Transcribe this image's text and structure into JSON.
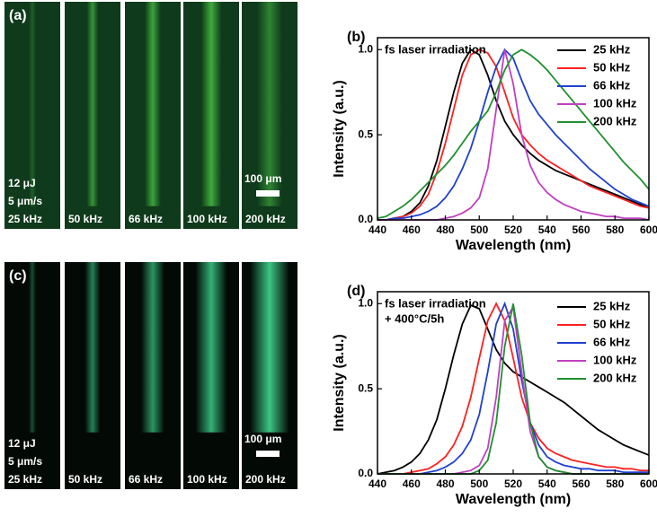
{
  "panels": [
    {
      "label": "(a)",
      "energy": "12 μJ",
      "speed": "5 μm/s",
      "frequencies": [
        "25 kHz",
        "50 kHz",
        "66 kHz",
        "100 kHz",
        "200 kHz"
      ],
      "scale": "100 μm"
    },
    {
      "label": "(c)",
      "energy": "12 μJ",
      "speed": "5 μm/s",
      "frequencies": [
        "25 kHz",
        "50 kHz",
        "66 kHz",
        "100 kHz",
        "200 kHz"
      ],
      "scale": "100 μm"
    }
  ],
  "chart_data": [
    {
      "type": "line",
      "label": "(b)",
      "annotation": [
        "fs laser irradiation"
      ],
      "x_label": "Wavelength (nm)",
      "y_label": "Intensity (a.u.)",
      "xlim": [
        440,
        600
      ],
      "ylim": [
        0,
        1.07
      ],
      "xticks": [
        440,
        460,
        480,
        500,
        520,
        540,
        560,
        580,
        600
      ],
      "yticks": [
        {
          "value": 0,
          "label": "0.0"
        },
        {
          "value": 0.5,
          "label": "0.5"
        },
        {
          "value": 1,
          "label": "1.0"
        }
      ],
      "legend": "upper right",
      "x": [
        440,
        445,
        450,
        455,
        460,
        465,
        470,
        475,
        480,
        485,
        490,
        495,
        500,
        505,
        510,
        515,
        520,
        525,
        530,
        535,
        540,
        545,
        550,
        555,
        560,
        565,
        570,
        575,
        580,
        585,
        590,
        595,
        600
      ],
      "series": [
        {
          "name": "25 kHz",
          "color": "#000000",
          "values": [
            0,
            0,
            0.01,
            0.02,
            0.05,
            0.1,
            0.2,
            0.35,
            0.55,
            0.75,
            0.92,
            1.0,
            0.97,
            0.85,
            0.7,
            0.58,
            0.5,
            0.44,
            0.39,
            0.35,
            0.32,
            0.29,
            0.27,
            0.25,
            0.23,
            0.21,
            0.19,
            0.17,
            0.15,
            0.13,
            0.11,
            0.09,
            0.07
          ]
        },
        {
          "name": "50 kHz",
          "color": "#ff2020",
          "values": [
            0,
            0,
            0.01,
            0.02,
            0.04,
            0.08,
            0.15,
            0.28,
            0.45,
            0.65,
            0.85,
            0.97,
            1.0,
            0.98,
            0.9,
            0.75,
            0.6,
            0.5,
            0.44,
            0.39,
            0.35,
            0.32,
            0.29,
            0.26,
            0.23,
            0.2,
            0.18,
            0.16,
            0.14,
            0.12,
            0.1,
            0.08,
            0.07
          ]
        },
        {
          "name": "66 kHz",
          "color": "#2040d0",
          "values": [
            0,
            0,
            0.01,
            0.01,
            0.02,
            0.03,
            0.05,
            0.08,
            0.13,
            0.2,
            0.3,
            0.42,
            0.58,
            0.75,
            0.9,
            1.0,
            0.95,
            0.82,
            0.7,
            0.62,
            0.56,
            0.5,
            0.45,
            0.4,
            0.35,
            0.3,
            0.26,
            0.22,
            0.18,
            0.15,
            0.12,
            0.1,
            0.08
          ]
        },
        {
          "name": "100 kHz",
          "color": "#c040c0",
          "values": [
            0,
            0,
            0,
            0,
            0,
            0,
            0,
            0,
            0.01,
            0.02,
            0.04,
            0.07,
            0.13,
            0.3,
            0.65,
            1.0,
            0.8,
            0.5,
            0.32,
            0.22,
            0.16,
            0.12,
            0.09,
            0.07,
            0.05,
            0.04,
            0.03,
            0.02,
            0.02,
            0.01,
            0.01,
            0.01,
            0
          ]
        },
        {
          "name": "200 kHz",
          "color": "#209030",
          "values": [
            0.01,
            0.02,
            0.05,
            0.08,
            0.12,
            0.17,
            0.22,
            0.27,
            0.32,
            0.38,
            0.45,
            0.52,
            0.58,
            0.64,
            0.75,
            0.88,
            0.97,
            1.0,
            0.97,
            0.93,
            0.88,
            0.82,
            0.76,
            0.7,
            0.64,
            0.58,
            0.52,
            0.46,
            0.4,
            0.34,
            0.29,
            0.24,
            0.18
          ]
        }
      ]
    },
    {
      "type": "line",
      "label": "(d)",
      "annotation": [
        "fs laser irradiation",
        "+ 400°C/5h"
      ],
      "x_label": "Wavelength (nm)",
      "y_label": "Intensity (a.u.)",
      "xlim": [
        440,
        600
      ],
      "ylim": [
        0,
        1.07
      ],
      "xticks": [
        440,
        460,
        480,
        500,
        520,
        540,
        560,
        580,
        600
      ],
      "yticks": [
        {
          "value": 0,
          "label": "0.0"
        },
        {
          "value": 0.5,
          "label": "0.5"
        },
        {
          "value": 1,
          "label": "1.0"
        }
      ],
      "legend": "upper right",
      "x": [
        440,
        445,
        450,
        455,
        460,
        465,
        470,
        475,
        480,
        485,
        490,
        495,
        500,
        505,
        510,
        515,
        520,
        525,
        530,
        535,
        540,
        545,
        550,
        555,
        560,
        565,
        570,
        575,
        580,
        585,
        590,
        595,
        600
      ],
      "series": [
        {
          "name": "25 kHz",
          "color": "#000000",
          "values": [
            0,
            0.01,
            0.02,
            0.04,
            0.07,
            0.12,
            0.2,
            0.32,
            0.5,
            0.7,
            0.88,
            0.99,
            0.97,
            0.85,
            0.73,
            0.65,
            0.6,
            0.57,
            0.54,
            0.51,
            0.48,
            0.45,
            0.42,
            0.38,
            0.34,
            0.3,
            0.26,
            0.23,
            0.2,
            0.17,
            0.15,
            0.13,
            0.11
          ]
        },
        {
          "name": "50 kHz",
          "color": "#ff2020",
          "values": [
            0,
            0,
            0,
            0,
            0.01,
            0.02,
            0.03,
            0.06,
            0.1,
            0.17,
            0.28,
            0.45,
            0.68,
            0.9,
            1.0,
            0.9,
            0.68,
            0.45,
            0.3,
            0.21,
            0.15,
            0.12,
            0.1,
            0.08,
            0.07,
            0.06,
            0.05,
            0.04,
            0.04,
            0.03,
            0.03,
            0.02,
            0.02
          ]
        },
        {
          "name": "66 kHz",
          "color": "#2040d0",
          "values": [
            0,
            0,
            0,
            0,
            0,
            0,
            0.01,
            0.02,
            0.04,
            0.07,
            0.12,
            0.2,
            0.35,
            0.6,
            0.88,
            1.0,
            0.85,
            0.55,
            0.3,
            0.17,
            0.1,
            0.07,
            0.05,
            0.04,
            0.03,
            0.03,
            0.02,
            0.02,
            0.02,
            0.01,
            0.01,
            0.01,
            0.01
          ]
        },
        {
          "name": "100 kHz",
          "color": "#c040c0",
          "values": [
            0,
            0,
            0,
            0,
            0,
            0,
            0,
            0,
            0,
            0,
            0.01,
            0.02,
            0.05,
            0.15,
            0.45,
            0.9,
            0.98,
            0.6,
            0.25,
            0.1,
            0.04,
            0.02,
            0.01,
            0,
            0,
            0,
            0,
            0,
            0,
            0,
            0,
            0,
            0
          ]
        },
        {
          "name": "200 kHz",
          "color": "#209030",
          "values": [
            0,
            0,
            0,
            0,
            0,
            0,
            0,
            0,
            0,
            0,
            0,
            0,
            0.02,
            0.08,
            0.3,
            0.75,
            1.0,
            0.7,
            0.3,
            0.1,
            0.04,
            0.02,
            0.01,
            0,
            0,
            0,
            0,
            0,
            0,
            0,
            0,
            0,
            0
          ]
        }
      ]
    }
  ]
}
